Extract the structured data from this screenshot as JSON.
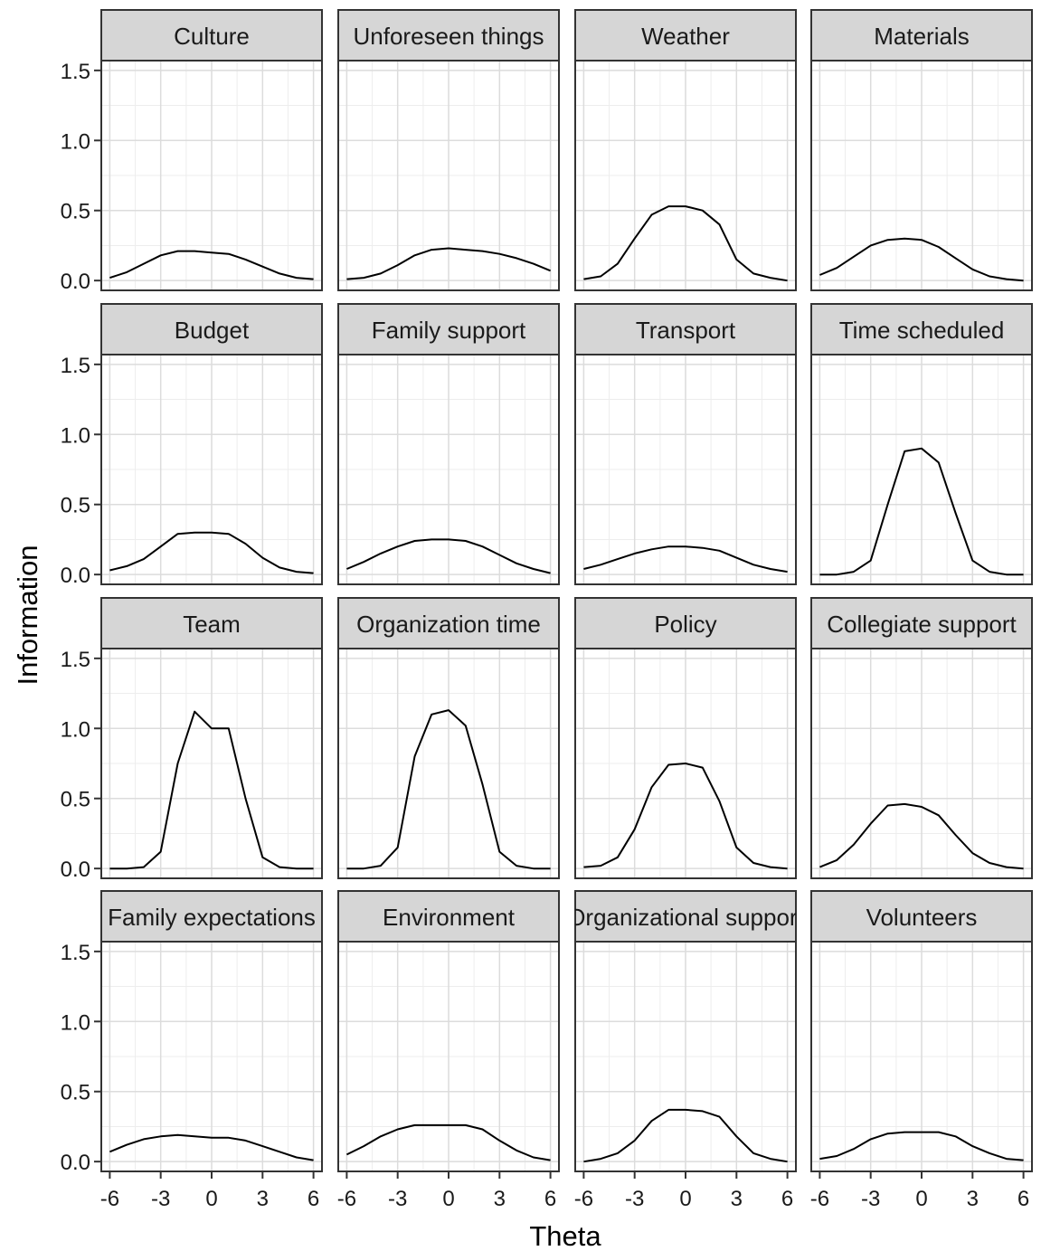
{
  "chart_data": {
    "type": "line",
    "xlabel": "Theta",
    "ylabel": "Information",
    "xlim": [
      -6.5,
      6.5
    ],
    "ylim": [
      -0.07,
      1.57
    ],
    "x_ticks": [
      -6,
      -3,
      0,
      3,
      6
    ],
    "x_tick_labels": [
      "-6",
      "-3",
      "0",
      "3",
      "6"
    ],
    "y_ticks": [
      0.0,
      0.5,
      1.0,
      1.5
    ],
    "y_tick_labels": [
      "0.0",
      "0.5",
      "1.0",
      "1.5"
    ],
    "grid": true,
    "facet_layout": {
      "rows": 4,
      "cols": 4
    },
    "x": [
      -6,
      -5,
      -4,
      -3,
      -2,
      -1,
      0,
      1,
      2,
      3,
      4,
      5,
      6
    ],
    "panels": [
      {
        "name": "Culture",
        "values": [
          0.02,
          0.06,
          0.12,
          0.18,
          0.21,
          0.21,
          0.2,
          0.19,
          0.15,
          0.1,
          0.05,
          0.02,
          0.01
        ]
      },
      {
        "name": "Unforeseen things",
        "values": [
          0.01,
          0.02,
          0.05,
          0.11,
          0.18,
          0.22,
          0.23,
          0.22,
          0.21,
          0.19,
          0.16,
          0.12,
          0.07
        ]
      },
      {
        "name": "Weather",
        "values": [
          0.01,
          0.03,
          0.12,
          0.3,
          0.47,
          0.53,
          0.53,
          0.5,
          0.4,
          0.15,
          0.05,
          0.02,
          0.0
        ]
      },
      {
        "name": "Materials",
        "values": [
          0.04,
          0.09,
          0.17,
          0.25,
          0.29,
          0.3,
          0.29,
          0.24,
          0.16,
          0.08,
          0.03,
          0.01,
          0.0
        ]
      },
      {
        "name": "Budget",
        "values": [
          0.03,
          0.06,
          0.11,
          0.2,
          0.29,
          0.3,
          0.3,
          0.29,
          0.22,
          0.12,
          0.05,
          0.02,
          0.01
        ]
      },
      {
        "name": "Family support",
        "values": [
          0.04,
          0.09,
          0.15,
          0.2,
          0.24,
          0.25,
          0.25,
          0.24,
          0.2,
          0.14,
          0.08,
          0.04,
          0.01
        ]
      },
      {
        "name": "Transport",
        "values": [
          0.04,
          0.07,
          0.11,
          0.15,
          0.18,
          0.2,
          0.2,
          0.19,
          0.17,
          0.12,
          0.07,
          0.04,
          0.02
        ]
      },
      {
        "name": "Time scheduled",
        "values": [
          0.0,
          0.0,
          0.02,
          0.1,
          0.5,
          0.88,
          0.9,
          0.8,
          0.44,
          0.1,
          0.02,
          0.0,
          0.0
        ]
      },
      {
        "name": "Team",
        "values": [
          0.0,
          0.0,
          0.01,
          0.12,
          0.75,
          1.12,
          1.0,
          1.0,
          0.5,
          0.08,
          0.01,
          0.0,
          0.0
        ]
      },
      {
        "name": "Organization time",
        "values": [
          0.0,
          0.0,
          0.02,
          0.15,
          0.8,
          1.1,
          1.13,
          1.02,
          0.6,
          0.12,
          0.02,
          0.0,
          0.0
        ]
      },
      {
        "name": "Policy",
        "values": [
          0.01,
          0.02,
          0.08,
          0.28,
          0.58,
          0.74,
          0.75,
          0.72,
          0.48,
          0.15,
          0.04,
          0.01,
          0.0
        ]
      },
      {
        "name": "Collegiate support",
        "values": [
          0.01,
          0.06,
          0.17,
          0.32,
          0.45,
          0.46,
          0.44,
          0.38,
          0.24,
          0.11,
          0.04,
          0.01,
          0.0
        ]
      },
      {
        "name": "Family expectations",
        "values": [
          0.07,
          0.12,
          0.16,
          0.18,
          0.19,
          0.18,
          0.17,
          0.17,
          0.15,
          0.11,
          0.07,
          0.03,
          0.01
        ]
      },
      {
        "name": "Environment",
        "values": [
          0.05,
          0.11,
          0.18,
          0.23,
          0.26,
          0.26,
          0.26,
          0.26,
          0.23,
          0.15,
          0.08,
          0.03,
          0.01
        ]
      },
      {
        "name": "Organizational support",
        "values": [
          0.0,
          0.02,
          0.06,
          0.15,
          0.29,
          0.37,
          0.37,
          0.36,
          0.32,
          0.18,
          0.06,
          0.02,
          0.0
        ]
      },
      {
        "name": "Volunteers",
        "values": [
          0.02,
          0.04,
          0.09,
          0.16,
          0.2,
          0.21,
          0.21,
          0.21,
          0.18,
          0.11,
          0.06,
          0.02,
          0.01
        ]
      }
    ]
  }
}
